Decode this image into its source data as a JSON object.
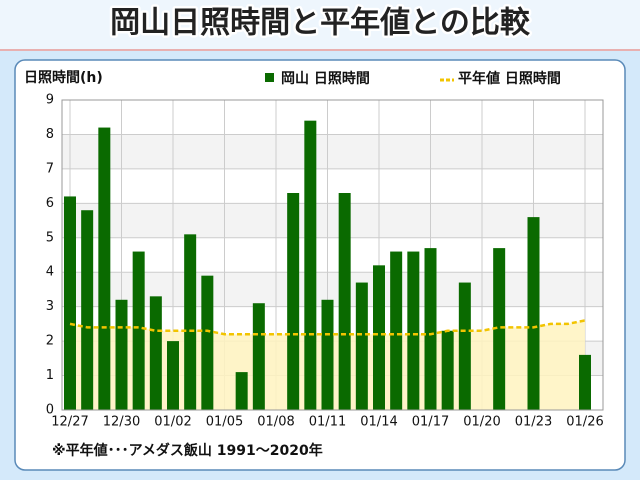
{
  "chart_data": {
    "type": "bar",
    "title": "岡山日照時間と平年値との比較",
    "y_label": "日照時間(h)",
    "footnote": "※平年値･･･アメダス飯山 1991〜2020年",
    "categories": [
      "12/27",
      null,
      null,
      "12/30",
      null,
      null,
      "01/02",
      null,
      null,
      "01/05",
      null,
      null,
      "01/08",
      null,
      null,
      "01/11",
      null,
      null,
      "01/14",
      null,
      null,
      "01/17",
      null,
      null,
      "01/20",
      null,
      null,
      "01/23",
      null,
      null,
      "01/26"
    ],
    "series": [
      {
        "name": "岡山 日照時間",
        "type": "bar",
        "color": "#0a6a00",
        "values": [
          6.2,
          5.8,
          8.2,
          3.2,
          4.6,
          3.3,
          2.0,
          5.1,
          3.9,
          0,
          1.1,
          3.1,
          0,
          6.3,
          8.4,
          3.2,
          6.3,
          3.7,
          4.2,
          4.6,
          4.6,
          4.7,
          2.3,
          3.7,
          0,
          4.7,
          0,
          5.6,
          0,
          0,
          1.6
        ]
      },
      {
        "name": "平年値 日照時間",
        "type": "line",
        "color": "#f2c400",
        "values": [
          2.5,
          2.4,
          2.4,
          2.4,
          2.4,
          2.3,
          2.3,
          2.3,
          2.3,
          2.2,
          2.2,
          2.2,
          2.2,
          2.2,
          2.2,
          2.2,
          2.2,
          2.2,
          2.2,
          2.2,
          2.2,
          2.2,
          2.3,
          2.3,
          2.3,
          2.4,
          2.4,
          2.4,
          2.5,
          2.5,
          2.6
        ]
      }
    ],
    "ylim": [
      0,
      9
    ],
    "yticks": [
      0,
      1,
      2,
      3,
      4,
      5,
      6,
      7,
      8,
      9
    ],
    "grid": true
  }
}
